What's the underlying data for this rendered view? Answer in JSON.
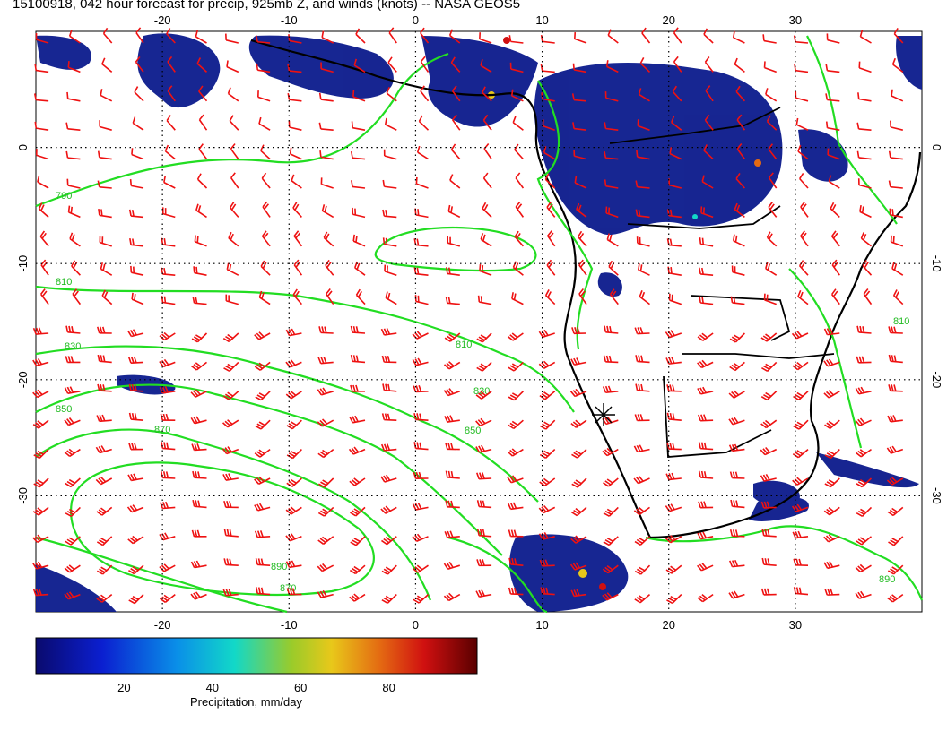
{
  "title": "15100918, 042 hour forecast for precip, 925mb Z, and winds (knots) -- NASA GEOS5",
  "map": {
    "lon_range": [
      -30,
      40
    ],
    "lat_range": [
      -40,
      10
    ],
    "lon_ticks": [
      -20,
      -10,
      0,
      10,
      20,
      30
    ],
    "lat_ticks": [
      0,
      -10,
      -20,
      -30
    ],
    "contour_labels": [
      "790",
      "810",
      "830",
      "850",
      "870",
      "890",
      "810",
      "830",
      "850",
      "810",
      "870",
      "890"
    ],
    "colors": {
      "precip_low": "#0b1a8c",
      "contour": "#22dd22",
      "barb": "#ee1111",
      "coast": "#000000"
    }
  },
  "colorbar": {
    "title": "Precipitation, mm/day",
    "ticks": [
      "20",
      "40",
      "60",
      "80"
    ],
    "range": [
      0,
      100
    ]
  }
}
